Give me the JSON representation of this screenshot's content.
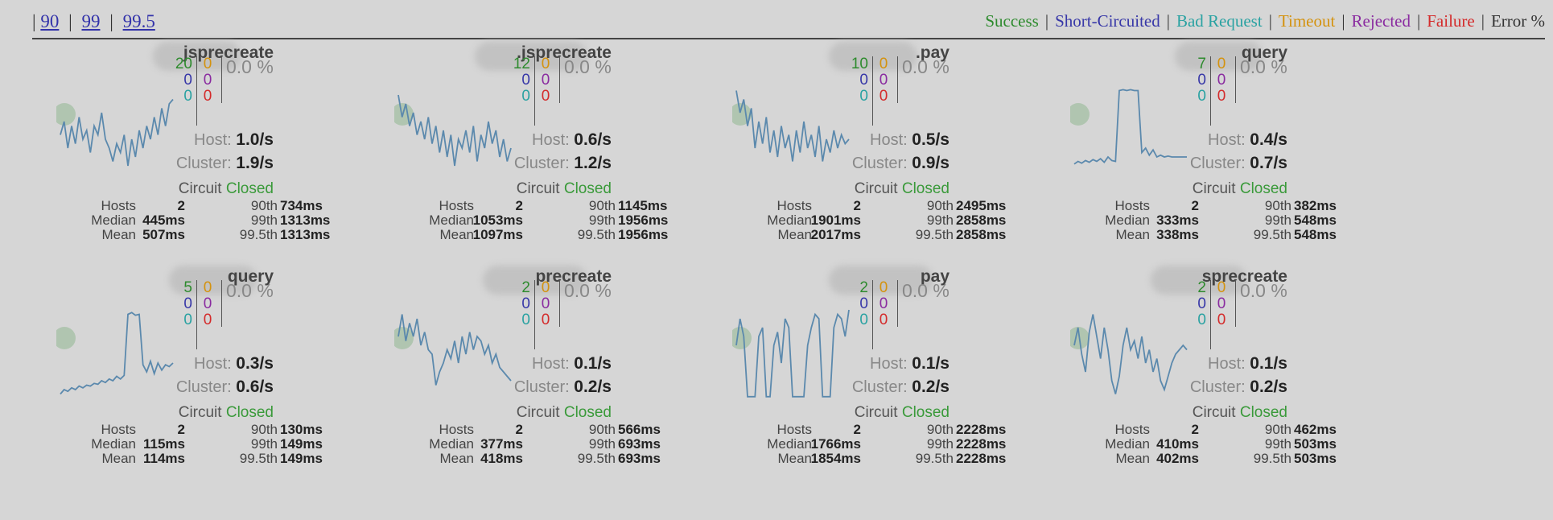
{
  "percentile_links": [
    "90",
    "99",
    "99.5"
  ],
  "legend": [
    {
      "label": "Success",
      "color": "#2e8b2e"
    },
    {
      "label": "Short-Circuited",
      "color": "#3838a8"
    },
    {
      "label": "Bad Request",
      "color": "#2aa2a2"
    },
    {
      "label": "Timeout",
      "color": "#d4920e"
    },
    {
      "label": "Rejected",
      "color": "#8a2ba0"
    },
    {
      "label": "Failure",
      "color": "#d42b2b"
    },
    {
      "label": "Error %",
      "color": "#333333"
    }
  ],
  "labels": {
    "host": "Host:",
    "cluster": "Cluster:",
    "circuit": "Circuit",
    "hosts": "Hosts",
    "median": "Median",
    "mean": "Mean",
    "p90": "90th",
    "p99": "99th",
    "p995": "99.5th"
  },
  "commands": [
    {
      "name": "jsprecreate",
      "success": "20",
      "short": "0",
      "bad": "0",
      "timeout": "0",
      "rejected": "0",
      "failure": "0",
      "error_pct": "0.0 %",
      "host_rate": "1.0/s",
      "cluster_rate": "1.9/s",
      "circuit": "Closed",
      "hosts": "2",
      "median": "445ms",
      "mean": "507ms",
      "p90": "734ms",
      "p99": "1313ms",
      "p995": "1313ms",
      "spark": [
        0.55,
        0.4,
        0.7,
        0.45,
        0.65,
        0.35,
        0.6,
        0.5,
        0.75,
        0.45,
        0.55,
        0.3,
        0.6,
        0.7,
        0.85,
        0.65,
        0.75,
        0.55,
        0.9,
        0.6,
        0.8,
        0.5,
        0.7,
        0.45,
        0.6,
        0.35,
        0.55,
        0.25,
        0.45,
        0.2,
        0.15
      ]
    },
    {
      "name": ".jsprecreate",
      "success": "12",
      "short": "0",
      "bad": "0",
      "timeout": "0",
      "rejected": "0",
      "failure": "0",
      "error_pct": "0.0 %",
      "host_rate": "0.6/s",
      "cluster_rate": "1.2/s",
      "circuit": "Closed",
      "hosts": "2",
      "median": "1053ms",
      "mean": "1097ms",
      "p90": "1145ms",
      "p99": "1956ms",
      "p995": "1956ms",
      "spark": [
        0.1,
        0.35,
        0.2,
        0.45,
        0.3,
        0.55,
        0.4,
        0.6,
        0.35,
        0.65,
        0.45,
        0.75,
        0.5,
        0.8,
        0.55,
        0.9,
        0.6,
        0.7,
        0.5,
        0.75,
        0.45,
        0.85,
        0.55,
        0.7,
        0.4,
        0.65,
        0.5,
        0.8,
        0.6,
        0.85,
        0.7
      ]
    },
    {
      "name": ".pay",
      "success": "10",
      "short": "0",
      "bad": "0",
      "timeout": "0",
      "rejected": "0",
      "failure": "0",
      "error_pct": "0.0 %",
      "host_rate": "0.5/s",
      "cluster_rate": "0.9/s",
      "circuit": "Closed",
      "hosts": "2",
      "median": "1901ms",
      "mean": "2017ms",
      "p90": "2495ms",
      "p99": "2858ms",
      "p995": "2858ms",
      "spark": [
        0.05,
        0.3,
        0.15,
        0.45,
        0.25,
        0.7,
        0.4,
        0.65,
        0.35,
        0.75,
        0.5,
        0.8,
        0.45,
        0.7,
        0.55,
        0.85,
        0.5,
        0.75,
        0.4,
        0.7,
        0.55,
        0.8,
        0.45,
        0.85,
        0.6,
        0.75,
        0.5,
        0.7,
        0.55,
        0.65,
        0.6
      ]
    },
    {
      "name": "query",
      "success": "7",
      "short": "0",
      "bad": "0",
      "timeout": "0",
      "rejected": "0",
      "failure": "0",
      "error_pct": "0.0 %",
      "host_rate": "0.4/s",
      "cluster_rate": "0.7/s",
      "circuit": "Closed",
      "hosts": "2",
      "median": "333ms",
      "mean": "338ms",
      "p90": "382ms",
      "p99": "548ms",
      "p995": "548ms",
      "spark": [
        0.88,
        0.85,
        0.87,
        0.84,
        0.86,
        0.83,
        0.85,
        0.82,
        0.86,
        0.8,
        0.84,
        0.85,
        0.05,
        0.04,
        0.05,
        0.04,
        0.05,
        0.05,
        0.75,
        0.7,
        0.78,
        0.72,
        0.8,
        0.78,
        0.8,
        0.79,
        0.8,
        0.8,
        0.8,
        0.8,
        0.8
      ]
    },
    {
      "name": "query",
      "success": "5",
      "short": "0",
      "bad": "0",
      "timeout": "0",
      "rejected": "0",
      "failure": "0",
      "error_pct": "0.0 %",
      "host_rate": "0.3/s",
      "cluster_rate": "0.6/s",
      "circuit": "Closed",
      "hosts": "2",
      "median": "115ms",
      "mean": "114ms",
      "p90": "130ms",
      "p99": "149ms",
      "p995": "149ms",
      "spark": [
        0.95,
        0.9,
        0.92,
        0.88,
        0.9,
        0.86,
        0.88,
        0.85,
        0.86,
        0.83,
        0.84,
        0.8,
        0.82,
        0.78,
        0.8,
        0.75,
        0.78,
        0.74,
        0.05,
        0.03,
        0.06,
        0.05,
        0.62,
        0.7,
        0.58,
        0.72,
        0.6,
        0.68,
        0.62,
        0.64,
        0.6
      ]
    },
    {
      "name": "precreate",
      "success": "2",
      "short": "0",
      "bad": "0",
      "timeout": "0",
      "rejected": "0",
      "failure": "0",
      "error_pct": "0.0 %",
      "host_rate": "0.1/s",
      "cluster_rate": "0.2/s",
      "circuit": "Closed",
      "hosts": "2",
      "median": "377ms",
      "mean": "418ms",
      "p90": "566ms",
      "p99": "693ms",
      "p995": "693ms",
      "spark": [
        0.3,
        0.05,
        0.35,
        0.15,
        0.3,
        0.1,
        0.4,
        0.25,
        0.45,
        0.5,
        0.85,
        0.7,
        0.6,
        0.45,
        0.55,
        0.35,
        0.6,
        0.3,
        0.5,
        0.25,
        0.45,
        0.3,
        0.35,
        0.5,
        0.4,
        0.6,
        0.5,
        0.65,
        0.7,
        0.75,
        0.8
      ]
    },
    {
      "name": "pay",
      "success": "2",
      "short": "0",
      "bad": "0",
      "timeout": "0",
      "rejected": "0",
      "failure": "0",
      "error_pct": "0.0 %",
      "host_rate": "0.1/s",
      "cluster_rate": "0.2/s",
      "circuit": "Closed",
      "hosts": "2",
      "median": "1766ms",
      "mean": "1854ms",
      "p90": "2228ms",
      "p99": "2228ms",
      "p995": "2228ms",
      "spark": [
        0.4,
        0.1,
        0.3,
        0.98,
        0.98,
        0.98,
        0.3,
        0.2,
        0.98,
        0.98,
        0.4,
        0.25,
        0.6,
        0.1,
        0.2,
        0.98,
        0.98,
        0.98,
        0.98,
        0.4,
        0.2,
        0.05,
        0.1,
        0.98,
        0.98,
        0.98,
        0.2,
        0.05,
        0.1,
        0.3,
        0.0
      ]
    },
    {
      "name": "sprecreate",
      "success": "2",
      "short": "0",
      "bad": "0",
      "timeout": "0",
      "rejected": "0",
      "failure": "0",
      "error_pct": "0.0 %",
      "host_rate": "0.1/s",
      "cluster_rate": "0.2/s",
      "circuit": "Closed",
      "hosts": "2",
      "median": "410ms",
      "mean": "402ms",
      "p90": "462ms",
      "p99": "503ms",
      "p995": "503ms",
      "spark": [
        0.4,
        0.2,
        0.5,
        0.7,
        0.25,
        0.05,
        0.3,
        0.55,
        0.2,
        0.45,
        0.8,
        0.95,
        0.75,
        0.4,
        0.2,
        0.45,
        0.35,
        0.55,
        0.3,
        0.6,
        0.45,
        0.7,
        0.55,
        0.8,
        0.9,
        0.75,
        0.6,
        0.5,
        0.45,
        0.4,
        0.45
      ]
    }
  ]
}
